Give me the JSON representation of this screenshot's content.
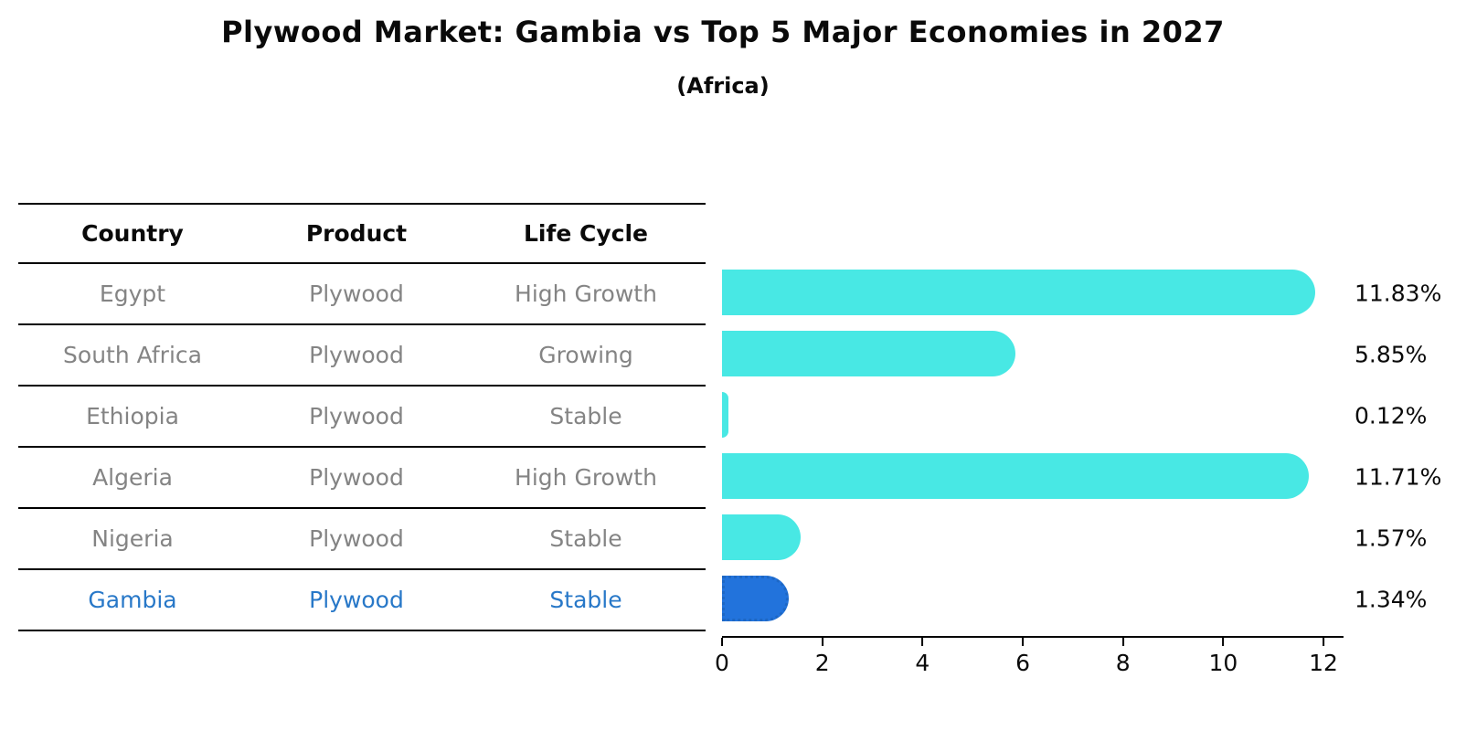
{
  "header": {
    "title": "Plywood Market: Gambia vs Top 5 Major Economies in 2027",
    "subtitle": "(Africa)"
  },
  "table": {
    "headers": [
      "Country",
      "Product",
      "Life Cycle"
    ],
    "rows": [
      {
        "country": "Egypt",
        "product": "Plywood",
        "life_cycle": "High Growth",
        "highlight": false
      },
      {
        "country": "South Africa",
        "product": "Plywood",
        "life_cycle": "Growing",
        "highlight": false
      },
      {
        "country": "Ethiopia",
        "product": "Plywood",
        "life_cycle": "Stable",
        "highlight": false
      },
      {
        "country": "Algeria",
        "product": "Plywood",
        "life_cycle": "High Growth",
        "highlight": false
      },
      {
        "country": "Nigeria",
        "product": "Plywood",
        "life_cycle": "Stable",
        "highlight": false
      },
      {
        "country": "Gambia",
        "product": "Plywood",
        "life_cycle": "Stable",
        "highlight": true
      }
    ]
  },
  "chart_data": {
    "type": "bar",
    "orientation": "horizontal",
    "title": "Plywood Market: Gambia vs Top 5 Major Economies in 2027",
    "subtitle": "(Africa)",
    "categories": [
      "Egypt",
      "South Africa",
      "Ethiopia",
      "Algeria",
      "Nigeria",
      "Gambia"
    ],
    "values": [
      11.83,
      5.85,
      0.12,
      11.71,
      1.57,
      1.34
    ],
    "value_labels": [
      "11.83%",
      "5.85%",
      "0.12%",
      "11.71%",
      "1.57%",
      "1.34%"
    ],
    "unit": "%",
    "x_ticks": [
      0,
      2,
      4,
      6,
      8,
      10,
      12
    ],
    "xlim": [
      0,
      12.4
    ],
    "grid": false,
    "legend": "none",
    "bar_color": "#48e8e4",
    "highlight_color": "#2273dc",
    "highlight_index": 5,
    "highlight_text_color": "#2878c8",
    "axis_color": "#000000",
    "text_color": "#0a0a0a",
    "muted_text_color": "#848484"
  }
}
